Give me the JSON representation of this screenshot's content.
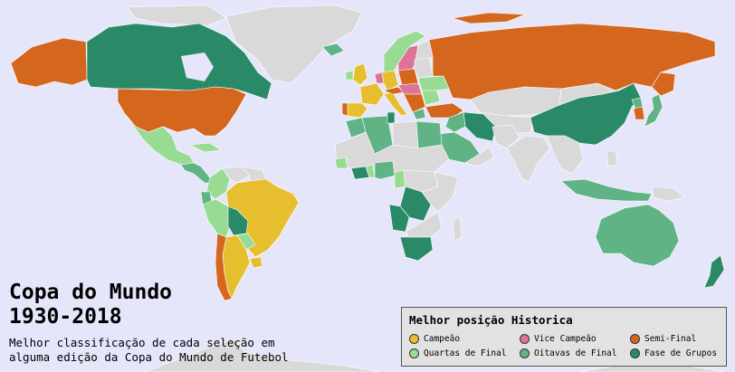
{
  "title": {
    "line1": "Copa do Mundo",
    "line2": "1930-2018"
  },
  "subtitle": {
    "line1": "Melhor classificação de cada seleção em",
    "line2": "alguma edição da Copa do Mundo de Futebol"
  },
  "legend": {
    "title": "Melhor posição Historica",
    "items": [
      {
        "label": "Campeão",
        "color": "#e6be2e"
      },
      {
        "label": "Vice Campeão",
        "color": "#dd7396"
      },
      {
        "label": "Semi-Final",
        "color": "#d4661d"
      },
      {
        "label": "Quartas de Final",
        "color": "#98dc94"
      },
      {
        "label": "Oitavas de Final",
        "color": "#5fb384"
      },
      {
        "label": "Fase de Grupos",
        "color": "#2a8a68"
      }
    ]
  },
  "colors": {
    "ocean": "#e6e6fa",
    "no_participation": "#d9d9d9",
    "border": "#ffffff"
  }
}
